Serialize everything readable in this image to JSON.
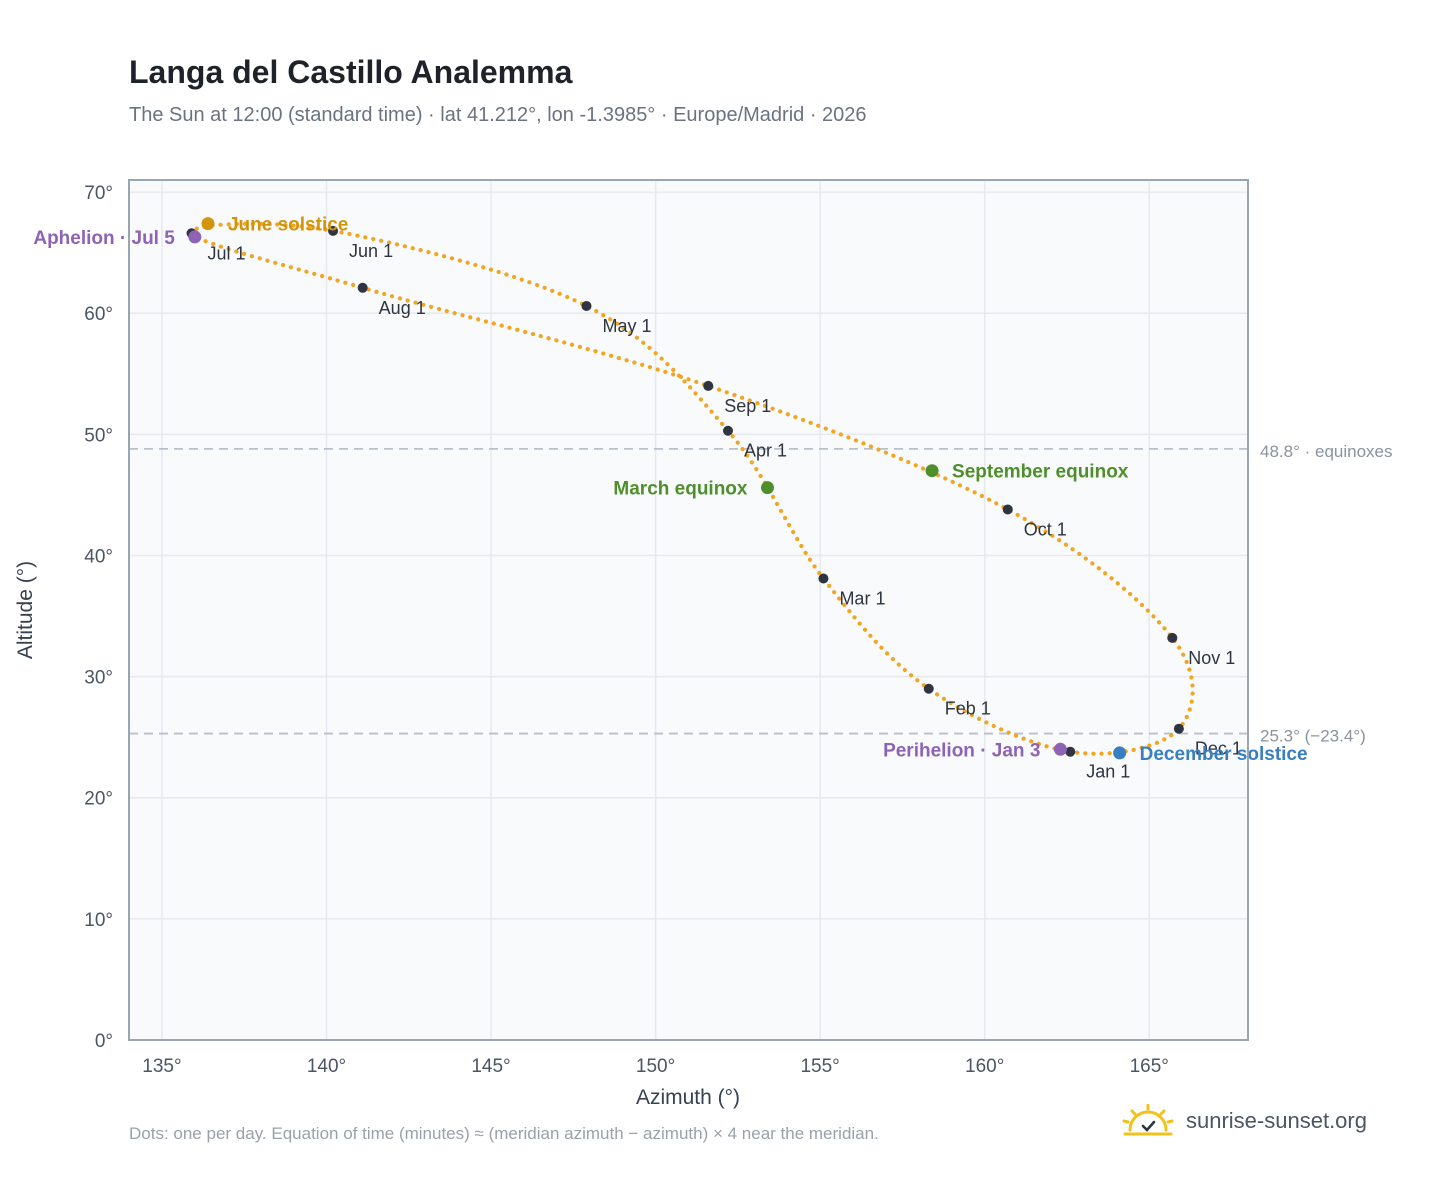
{
  "title": "Langa del Castillo Analemma",
  "subtitle": "The Sun at 12:00 (standard time) · lat 41.212°, lon -1.3985° · Europe/Madrid · 2026",
  "footnote": "Dots: one per day. Equation of time (minutes) ≈ (meridian azimuth − azimuth) × 4 near the meridian.",
  "brand": {
    "text": "sunrise-sunset.org",
    "icon": "sun-check-icon",
    "icon_color": "#f2c21b"
  },
  "colors": {
    "curve": "#f2a521",
    "month_dot": "#2f3540",
    "june_solstice": "#d4940a",
    "december_solstice": "#3a7ec2",
    "equinox": "#4e8f2b",
    "apsis": "#8e63b6",
    "grid": "#e6e9ee",
    "reference_line": "#b7c1cc",
    "plot_bg": "#f8fafc",
    "frame": "#9aa5b4"
  },
  "chart_data": {
    "type": "scatter",
    "xlabel": "Azimuth (°)",
    "ylabel": "Altitude (°)",
    "xlim": [
      134,
      168
    ],
    "ylim": [
      0,
      71
    ],
    "xticks": [
      {
        "value": 135,
        "label": "135°"
      },
      {
        "value": 140,
        "label": "140°"
      },
      {
        "value": 145,
        "label": "145°"
      },
      {
        "value": 150,
        "label": "150°"
      },
      {
        "value": 155,
        "label": "155°"
      },
      {
        "value": 160,
        "label": "160°"
      },
      {
        "value": 165,
        "label": "165°"
      }
    ],
    "yticks": [
      {
        "value": 0,
        "label": "0°"
      },
      {
        "value": 10,
        "label": "10°"
      },
      {
        "value": 20,
        "label": "20°"
      },
      {
        "value": 30,
        "label": "30°"
      },
      {
        "value": 40,
        "label": "40°"
      },
      {
        "value": 50,
        "label": "50°"
      },
      {
        "value": 60,
        "label": "60°"
      },
      {
        "value": 70,
        "label": "70°"
      }
    ],
    "grid": true,
    "reference_lines": [
      {
        "y": 48.8,
        "label": "48.8° · equinoxes"
      },
      {
        "y": 25.3,
        "label": "25.3° (−23.4°)"
      }
    ],
    "months": [
      {
        "label": "Jan 1",
        "x": 162.6,
        "y": 23.8
      },
      {
        "label": "Feb 1",
        "x": 158.3,
        "y": 29.0
      },
      {
        "label": "Mar 1",
        "x": 155.1,
        "y": 38.1
      },
      {
        "label": "Apr 1",
        "x": 152.2,
        "y": 50.3
      },
      {
        "label": "May 1",
        "x": 147.9,
        "y": 60.6
      },
      {
        "label": "Jun 1",
        "x": 140.2,
        "y": 66.8
      },
      {
        "label": "Jul 1",
        "x": 135.9,
        "y": 66.6
      },
      {
        "label": "Aug 1",
        "x": 141.1,
        "y": 62.1
      },
      {
        "label": "Sep 1",
        "x": 151.6,
        "y": 54.0
      },
      {
        "label": "Oct 1",
        "x": 160.7,
        "y": 43.8
      },
      {
        "label": "Nov 1",
        "x": 165.7,
        "y": 33.2
      },
      {
        "label": "Dec 1",
        "x": 165.9,
        "y": 25.7
      }
    ],
    "events": [
      {
        "label": "June solstice",
        "x": 136.4,
        "y": 67.4,
        "color_key": "june_solstice",
        "side": "right"
      },
      {
        "label": "December solstice",
        "x": 164.1,
        "y": 23.7,
        "color_key": "december_solstice",
        "side": "right"
      },
      {
        "label": "March equinox",
        "x": 153.4,
        "y": 45.6,
        "color_key": "equinox",
        "side": "left"
      },
      {
        "label": "September equinox",
        "x": 158.4,
        "y": 47.0,
        "color_key": "equinox",
        "side": "right"
      },
      {
        "label": "Perihelion · Jan 3",
        "x": 162.3,
        "y": 24.0,
        "color_key": "apsis",
        "side": "left"
      },
      {
        "label": "Aphelion · Jul 5",
        "x": 136.0,
        "y": 66.3,
        "color_key": "apsis",
        "side": "left"
      }
    ]
  }
}
